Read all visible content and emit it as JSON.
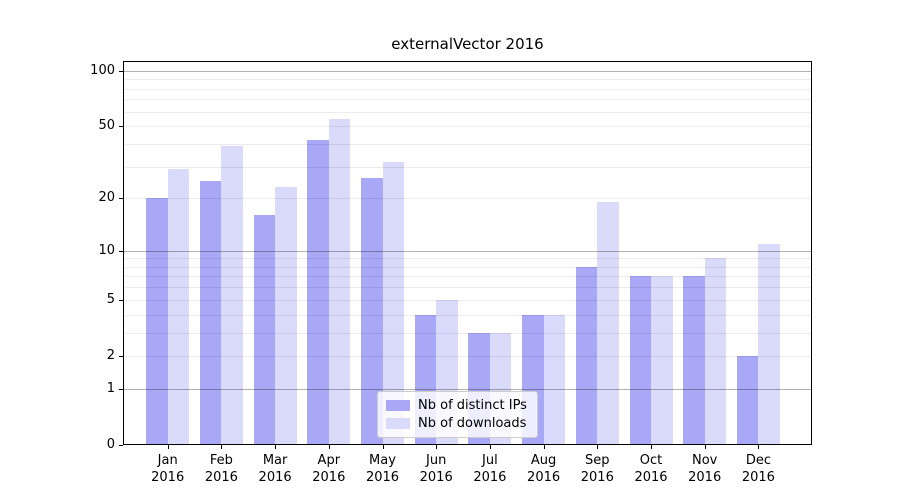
{
  "title": "externalVector 2016",
  "colors": {
    "background": "#ffffff",
    "bar_distinct_ips": "#a8a8f7",
    "bar_downloads": "#dadafa",
    "grid_major": "rgba(0,0,0,0.30)",
    "grid_minor": "rgba(0,0,0,0.08)",
    "axis": "#000000",
    "legend_border": "#cccccc"
  },
  "chart_data": {
    "type": "bar",
    "title": "externalVector 2016",
    "xlabel": "",
    "ylabel": "",
    "y_scale": "log10(1+y)",
    "grid": true,
    "legend_position": "lower center",
    "categories": [
      "Jan 2016",
      "Feb 2016",
      "Mar 2016",
      "Apr 2016",
      "May 2016",
      "Jun 2016",
      "Jul 2016",
      "Aug 2016",
      "Sep 2016",
      "Oct 2016",
      "Nov 2016",
      "Dec 2016"
    ],
    "series": [
      {
        "name": "Nb of distinct IPs",
        "color": "#a8a8f7",
        "values": [
          20,
          25,
          16,
          42,
          26,
          4,
          3,
          4,
          8,
          7,
          7,
          2
        ]
      },
      {
        "name": "Nb of downloads",
        "color": "#dadafa",
        "values": [
          29,
          39,
          23,
          55,
          32,
          5,
          3,
          4,
          19,
          7,
          9,
          11
        ]
      }
    ],
    "y_tick_labels": [
      0,
      1,
      2,
      5,
      10,
      20,
      50,
      100
    ],
    "y_gridlines_major": [
      1,
      10,
      100
    ],
    "y_gridlines_minor": [
      2,
      3,
      4,
      5,
      6,
      7,
      8,
      9,
      20,
      30,
      40,
      50,
      60,
      70,
      80,
      90
    ],
    "ylim": [
      0,
      113
    ]
  }
}
